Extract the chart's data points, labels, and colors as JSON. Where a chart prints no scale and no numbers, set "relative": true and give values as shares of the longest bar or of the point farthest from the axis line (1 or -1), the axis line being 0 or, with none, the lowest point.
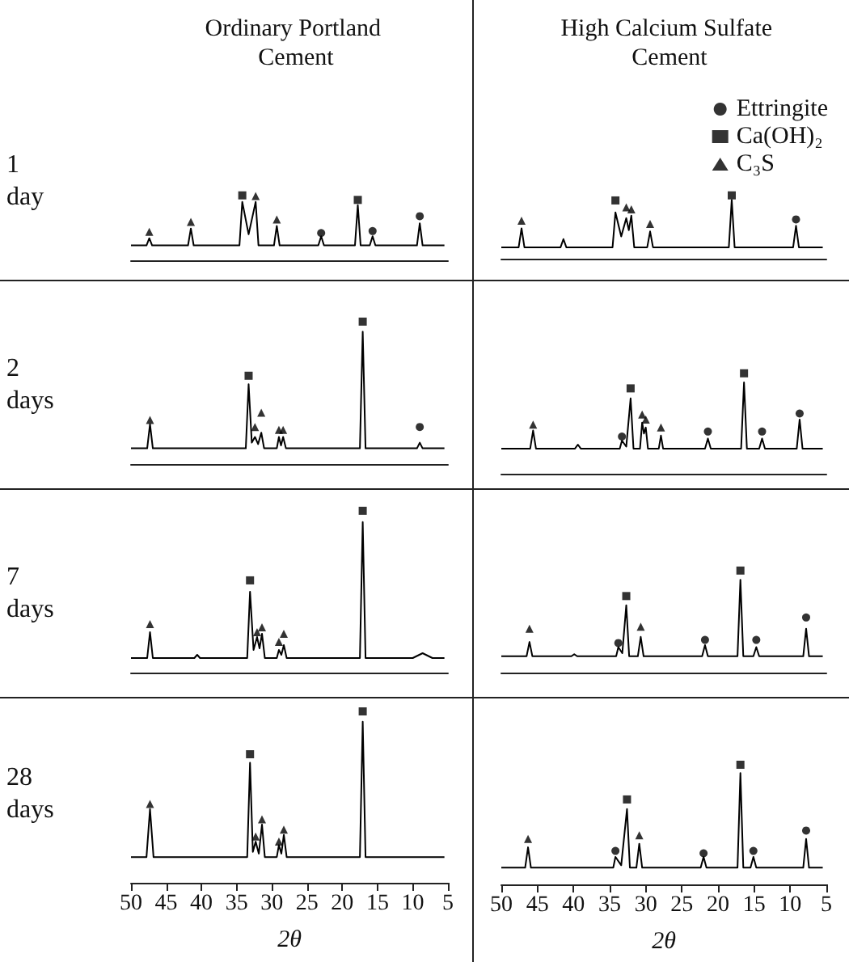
{
  "chart_data": [
    {
      "type": "line",
      "relative": true,
      "title": "Ordinary Portland Cement",
      "ylabel": "1 day",
      "xlim": [
        50,
        5
      ],
      "xticks": [
        50,
        45,
        40,
        35,
        30,
        25,
        20,
        15,
        10,
        5
      ],
      "tick_labels": false,
      "series": [
        {
          "type": "line",
          "color": "#000000",
          "x": [
            50,
            47.8,
            47.4,
            47.0,
            41.9,
            41.5,
            41.1,
            34.6,
            34.2,
            33.3,
            32.3,
            31.9,
            29.7,
            29.3,
            28.9,
            23.4,
            23.0,
            22.6,
            18.2,
            17.8,
            17.4,
            16.1,
            15.7,
            15.3,
            9.4,
            9.0,
            8.6,
            5.5
          ],
          "values": [
            0.23,
            0.23,
            0.34,
            0.23,
            0.23,
            0.49,
            0.23,
            0.23,
            0.9,
            0.4,
            0.9,
            0.23,
            0.23,
            0.53,
            0.23,
            0.23,
            0.37,
            0.23,
            0.23,
            0.85,
            0.23,
            0.23,
            0.37,
            0.23,
            0.23,
            0.57,
            0.23,
            0.23
          ]
        },
        {
          "type": "scatter",
          "marker": "circle",
          "color": "#000000",
          "x": [
            23.0,
            15.7,
            9.0
          ],
          "values": [
            0.42,
            0.45,
            0.68
          ]
        },
        {
          "type": "scatter",
          "marker": "square",
          "color": "#000000",
          "x": [
            34.2,
            17.8
          ],
          "values": [
            1.0,
            0.93
          ]
        },
        {
          "type": "scatter",
          "marker": "triangle",
          "color": "#000000",
          "x": [
            47.4,
            41.5,
            32.3,
            29.3
          ],
          "values": [
            0.44,
            0.59,
            0.99,
            0.63
          ]
        }
      ]
    },
    {
      "type": "line",
      "relative": true,
      "title": "High Calcium Sulfate Cement",
      "legend": "top right",
      "xlim": [
        50,
        5
      ],
      "xticks": [
        50,
        45,
        40,
        35,
        30,
        25,
        20,
        15,
        10,
        5
      ],
      "tick_labels": false,
      "series": [
        {
          "type": "line",
          "color": "#000000",
          "x": [
            50,
            47.6,
            47.2,
            46.8,
            41.8,
            41.4,
            41.0,
            34.6,
            34.2,
            33.4,
            32.7,
            32.35,
            32.0,
            31.6,
            29.8,
            29.4,
            29.0,
            18.5,
            18.1,
            17.7,
            9.6,
            9.2,
            8.8,
            5.5
          ],
          "values": [
            0.18,
            0.18,
            0.48,
            0.18,
            0.18,
            0.31,
            0.18,
            0.18,
            0.73,
            0.35,
            0.64,
            0.45,
            0.68,
            0.18,
            0.18,
            0.43,
            0.18,
            0.18,
            0.93,
            0.18,
            0.18,
            0.52,
            0.18,
            0.18
          ]
        },
        {
          "type": "scatter",
          "name": "Ettringite",
          "marker": "circle",
          "color": "#000000",
          "x": [
            9.2
          ],
          "values": [
            0.62
          ]
        },
        {
          "type": "scatter",
          "name": "Ca(OH)₂",
          "marker": "square",
          "color": "#000000",
          "x": [
            34.2,
            18.1
          ],
          "values": [
            0.92,
            1.0
          ]
        },
        {
          "type": "scatter",
          "name": "C₃S",
          "marker": "triangle",
          "color": "#000000",
          "x": [
            47.2,
            32.7,
            32.0,
            29.4
          ],
          "values": [
            0.6,
            0.81,
            0.78,
            0.55
          ]
        }
      ]
    },
    {
      "type": "line",
      "relative": true,
      "ylabel": "2 days",
      "xlim": [
        50,
        5
      ],
      "xticks": [
        50,
        45,
        40,
        35,
        30,
        25,
        20,
        15,
        10,
        5
      ],
      "tick_labels": false,
      "series": [
        {
          "type": "line",
          "color": "#000000",
          "x": [
            50,
            47.7,
            47.3,
            46.9,
            33.7,
            33.3,
            32.85,
            32.4,
            31.95,
            31.5,
            31.1,
            29.3,
            29.0,
            28.7,
            28.4,
            28.0,
            17.5,
            17.1,
            16.7,
            9.4,
            9.0,
            8.6,
            5.5
          ],
          "values": [
            0.11,
            0.11,
            0.28,
            0.11,
            0.11,
            0.56,
            0.15,
            0.19,
            0.14,
            0.22,
            0.11,
            0.11,
            0.19,
            0.13,
            0.19,
            0.11,
            0.11,
            0.93,
            0.11,
            0.11,
            0.15,
            0.11,
            0.11
          ]
        },
        {
          "type": "scatter",
          "marker": "circle",
          "color": "#000000",
          "x": [
            9.0
          ],
          "values": [
            0.26
          ]
        },
        {
          "type": "scatter",
          "marker": "square",
          "color": "#000000",
          "x": [
            33.3,
            17.1
          ],
          "values": [
            0.62,
            1.0
          ]
        },
        {
          "type": "scatter",
          "marker": "triangle",
          "color": "#000000",
          "x": [
            47.3,
            32.4,
            31.5,
            29.0,
            28.4
          ],
          "values": [
            0.31,
            0.26,
            0.36,
            0.24,
            0.24
          ]
        }
      ]
    },
    {
      "type": "line",
      "relative": true,
      "xlim": [
        50,
        5
      ],
      "xticks": [
        50,
        45,
        40,
        35,
        30,
        25,
        20,
        15,
        10,
        5
      ],
      "tick_labels": false,
      "series": [
        {
          "type": "line",
          "color": "#000000",
          "x": [
            50,
            46.0,
            45.6,
            45.2,
            39.8,
            39.4,
            39.0,
            33.6,
            33.3,
            32.7,
            32.1,
            31.7,
            30.8,
            30.5,
            30.25,
            30.0,
            29.7,
            28.2,
            27.9,
            27.6,
            21.8,
            21.4,
            21.0,
            16.8,
            16.4,
            16.0,
            14.3,
            13.9,
            13.5,
            9.1,
            8.7,
            8.3,
            5.5
          ],
          "values": [
            0.25,
            0.25,
            0.43,
            0.25,
            0.25,
            0.29,
            0.25,
            0.25,
            0.33,
            0.27,
            0.75,
            0.25,
            0.25,
            0.51,
            0.4,
            0.46,
            0.25,
            0.25,
            0.38,
            0.25,
            0.25,
            0.35,
            0.25,
            0.25,
            0.91,
            0.25,
            0.25,
            0.35,
            0.25,
            0.25,
            0.54,
            0.25,
            0.25
          ]
        },
        {
          "type": "scatter",
          "marker": "circle",
          "color": "#000000",
          "x": [
            33.3,
            21.4,
            13.9,
            8.7
          ],
          "values": [
            0.37,
            0.42,
            0.42,
            0.6
          ]
        },
        {
          "type": "scatter",
          "marker": "square",
          "color": "#000000",
          "x": [
            32.1,
            16.4
          ],
          "values": [
            0.85,
            1.0
          ]
        },
        {
          "type": "scatter",
          "marker": "triangle",
          "color": "#000000",
          "x": [
            45.6,
            30.5,
            30.0,
            27.9
          ],
          "values": [
            0.49,
            0.59,
            0.54,
            0.46
          ]
        }
      ]
    },
    {
      "type": "line",
      "relative": true,
      "ylabel": "7 days",
      "xlim": [
        50,
        5
      ],
      "xticks": [
        50,
        45,
        40,
        35,
        30,
        25,
        20,
        15,
        10,
        5
      ],
      "tick_labels": false,
      "series": [
        {
          "type": "line",
          "color": "#000000",
          "x": [
            50,
            47.7,
            47.3,
            46.9,
            41.0,
            40.6,
            40.2,
            33.5,
            33.1,
            32.6,
            32.1,
            31.75,
            31.4,
            31.0,
            29.3,
            29.0,
            28.65,
            28.3,
            27.9,
            17.5,
            17.1,
            16.7,
            10.0,
            8.6,
            7.2,
            5.5
          ],
          "values": [
            0.09,
            0.09,
            0.25,
            0.09,
            0.09,
            0.11,
            0.09,
            0.09,
            0.5,
            0.14,
            0.22,
            0.15,
            0.24,
            0.09,
            0.09,
            0.14,
            0.11,
            0.17,
            0.09,
            0.09,
            0.93,
            0.09,
            0.09,
            0.12,
            0.09,
            0.09
          ]
        },
        {
          "type": "scatter",
          "marker": "square",
          "color": "#000000",
          "x": [
            33.1,
            17.1
          ],
          "values": [
            0.57,
            1.0
          ]
        },
        {
          "type": "scatter",
          "marker": "triangle",
          "color": "#000000",
          "x": [
            47.3,
            32.1,
            31.4,
            29.0,
            28.3
          ],
          "values": [
            0.3,
            0.25,
            0.28,
            0.19,
            0.24
          ]
        }
      ]
    },
    {
      "type": "line",
      "relative": true,
      "xlim": [
        50,
        5
      ],
      "xticks": [
        50,
        45,
        40,
        35,
        30,
        25,
        20,
        15,
        10,
        5
      ],
      "tick_labels": false,
      "series": [
        {
          "type": "line",
          "color": "#000000",
          "x": [
            50,
            46.5,
            46.1,
            45.7,
            40.3,
            39.9,
            39.5,
            34.1,
            33.8,
            33.25,
            32.7,
            32.3,
            31.1,
            30.7,
            30.3,
            22.2,
            21.8,
            21.4,
            17.3,
            16.9,
            16.5,
            15.1,
            14.7,
            14.3,
            8.2,
            7.8,
            7.4,
            5.5
          ],
          "values": [
            0.16,
            0.16,
            0.3,
            0.16,
            0.16,
            0.18,
            0.16,
            0.16,
            0.25,
            0.19,
            0.66,
            0.16,
            0.16,
            0.35,
            0.16,
            0.16,
            0.27,
            0.16,
            0.16,
            0.91,
            0.16,
            0.16,
            0.25,
            0.16,
            0.16,
            0.43,
            0.16,
            0.16
          ]
        },
        {
          "type": "scatter",
          "marker": "circle",
          "color": "#000000",
          "x": [
            33.8,
            21.8,
            14.7,
            7.8
          ],
          "values": [
            0.29,
            0.32,
            0.32,
            0.54
          ]
        },
        {
          "type": "scatter",
          "marker": "square",
          "color": "#000000",
          "x": [
            32.7,
            16.9
          ],
          "values": [
            0.75,
            1.0
          ]
        },
        {
          "type": "scatter",
          "marker": "triangle",
          "color": "#000000",
          "x": [
            46.1,
            30.7
          ],
          "values": [
            0.43,
            0.45
          ]
        }
      ]
    },
    {
      "type": "line",
      "relative": true,
      "ylabel": "28 days",
      "xlabel": "2θ",
      "xlim": [
        50,
        5
      ],
      "xticks": [
        50,
        45,
        40,
        35,
        30,
        25,
        20,
        15,
        10,
        5
      ],
      "tick_labels": "x",
      "series": [
        {
          "type": "line",
          "color": "#000000",
          "x": [
            50,
            47.8,
            47.3,
            46.8,
            33.5,
            33.1,
            32.7,
            32.3,
            31.85,
            31.4,
            31.0,
            29.3,
            29.0,
            28.65,
            28.3,
            27.9,
            17.5,
            17.1,
            16.7,
            5.5
          ],
          "values": [
            0.15,
            0.15,
            0.43,
            0.15,
            0.15,
            0.7,
            0.18,
            0.24,
            0.17,
            0.34,
            0.15,
            0.15,
            0.22,
            0.17,
            0.28,
            0.15,
            0.15,
            0.94,
            0.15,
            0.15
          ]
        },
        {
          "type": "scatter",
          "marker": "square",
          "color": "#000000",
          "x": [
            33.1,
            17.1
          ],
          "values": [
            0.75,
            1.0
          ]
        },
        {
          "type": "scatter",
          "marker": "triangle",
          "color": "#000000",
          "x": [
            47.3,
            32.3,
            31.4,
            29.0,
            28.3
          ],
          "values": [
            0.46,
            0.27,
            0.37,
            0.24,
            0.31
          ]
        }
      ]
    },
    {
      "type": "line",
      "relative": true,
      "xlabel": "2θ",
      "xlim": [
        50,
        5
      ],
      "xticks": [
        50,
        45,
        40,
        35,
        30,
        25,
        20,
        15,
        10,
        5
      ],
      "tick_labels": "x",
      "series": [
        {
          "type": "line",
          "color": "#000000",
          "x": [
            50,
            46.7,
            46.3,
            45.9,
            34.5,
            34.2,
            33.4,
            32.6,
            32.2,
            31.3,
            30.9,
            30.5,
            22.4,
            22.0,
            21.6,
            17.3,
            16.9,
            16.5,
            15.5,
            15.1,
            14.7,
            8.2,
            7.8,
            7.4,
            5.5
          ],
          "values": [
            0.14,
            0.14,
            0.31,
            0.14,
            0.14,
            0.23,
            0.16,
            0.63,
            0.14,
            0.14,
            0.34,
            0.14,
            0.14,
            0.23,
            0.14,
            0.14,
            0.93,
            0.14,
            0.14,
            0.23,
            0.14,
            0.14,
            0.38,
            0.14,
            0.14
          ]
        },
        {
          "type": "scatter",
          "marker": "circle",
          "color": "#000000",
          "x": [
            34.2,
            22.0,
            15.1,
            7.8
          ],
          "values": [
            0.28,
            0.26,
            0.28,
            0.45
          ]
        },
        {
          "type": "scatter",
          "marker": "square",
          "color": "#000000",
          "x": [
            32.6,
            16.9
          ],
          "values": [
            0.71,
            1.0
          ]
        },
        {
          "type": "scatter",
          "marker": "triangle",
          "color": "#000000",
          "x": [
            46.3,
            30.9
          ],
          "values": [
            0.38,
            0.41
          ]
        }
      ]
    }
  ]
}
